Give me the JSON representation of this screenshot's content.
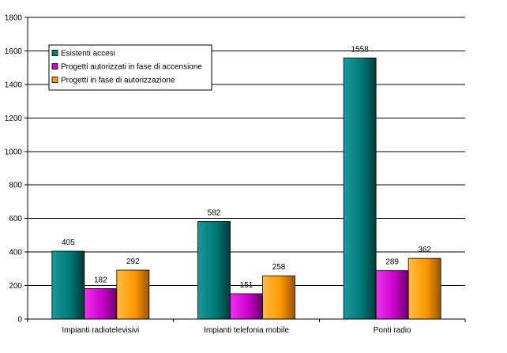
{
  "chart_data": {
    "type": "bar",
    "title": "",
    "xlabel": "",
    "ylabel": "",
    "ylim": [
      0,
      1800
    ],
    "yticks": [
      0,
      200,
      400,
      600,
      800,
      1000,
      1200,
      1400,
      1600,
      1800
    ],
    "grid": true,
    "legend_position": "top-left",
    "categories": [
      "Impianti radiotelevisivi",
      "Impianti telefonia mobile",
      "Ponti radio"
    ],
    "series": [
      {
        "name": "Esistenti accesi",
        "values": [
          405,
          582,
          1558
        ],
        "color": "#008080"
      },
      {
        "name": "Progetti autorizzati in fase di accensione",
        "values": [
          182,
          151,
          289
        ],
        "color": "#cc00cc"
      },
      {
        "name": "Progetti in fase di autorizzazione",
        "values": [
          292,
          258,
          362
        ],
        "color": "#ff9900"
      }
    ]
  }
}
